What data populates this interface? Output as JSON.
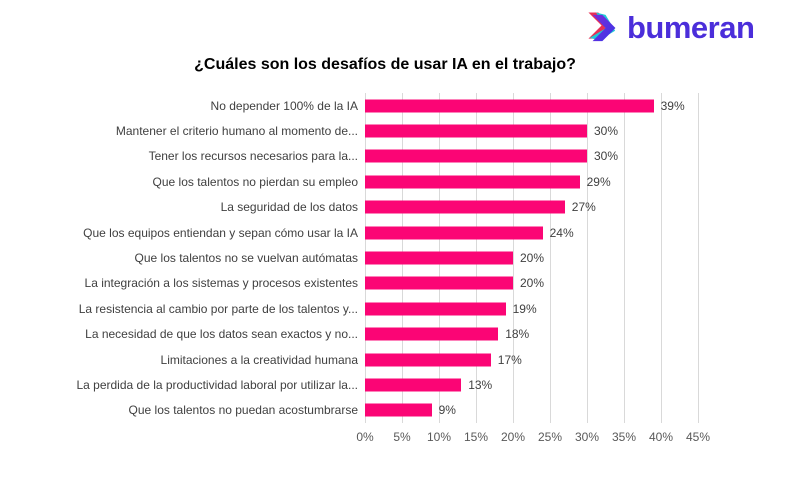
{
  "logo": {
    "text": "bumeran",
    "wordmark_color": "#4B2EDA",
    "icon": {
      "name": "boomerang-chevron",
      "back_left_color": "#E73055",
      "back_right_color": "#1FC9D6",
      "front_gradient": [
        "#7C2BD9",
        "#3636E8"
      ]
    }
  },
  "chart_data": {
    "type": "bar",
    "orientation": "horizontal",
    "title": "¿Cuáles son los desafíos de usar IA en el trabajo?",
    "categories": [
      "No depender 100% de la IA",
      "Mantener el criterio humano al momento de...",
      "Tener los recursos necesarios para la...",
      "Que los talentos no pierdan su empleo",
      "La seguridad de los datos",
      "Que los equipos entiendan y sepan cómo usar la IA",
      "Que los talentos no se vuelvan autómatas",
      "La integración a los sistemas y procesos existentes",
      "La resistencia al cambio por parte de los talentos y...",
      "La necesidad de que los datos sean exactos y no...",
      "Limitaciones a la creatividad humana",
      "La perdida de la productividad laboral por utilizar la...",
      "Que los talentos no puedan acostumbrarse"
    ],
    "values": [
      39,
      30,
      30,
      29,
      27,
      24,
      20,
      20,
      19,
      18,
      17,
      13,
      9
    ],
    "value_labels": [
      "39%",
      "30%",
      "30%",
      "29%",
      "27%",
      "24%",
      "20%",
      "20%",
      "19%",
      "18%",
      "17%",
      "13%",
      "9%"
    ],
    "xlabel": "",
    "ylabel": "",
    "xlim": [
      0,
      45
    ],
    "x_ticks": [
      "0%",
      "5%",
      "10%",
      "15%",
      "20%",
      "25%",
      "30%",
      "35%",
      "40%",
      "45%"
    ],
    "grid": "vertical",
    "legend": "none",
    "bar_color": "#FB0575",
    "gridline_color": "#D9D9D9",
    "label_color": "#404040",
    "tick_color": "#595959"
  }
}
